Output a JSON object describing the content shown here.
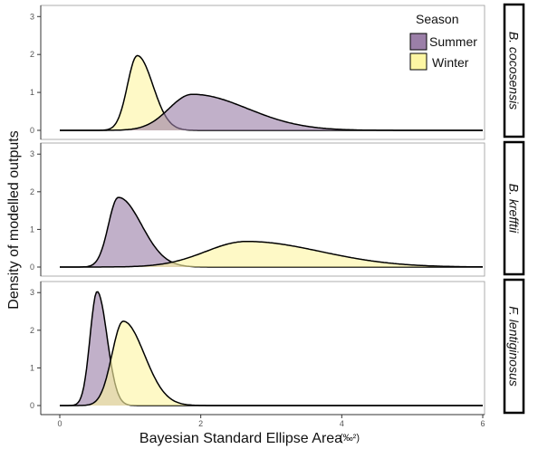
{
  "chart_data": {
    "type": "area",
    "xlabel": "Bayesian Standard Ellipse Area",
    "xlabel_unit": "(‰²)",
    "ylabel": "Density of modelled outputs",
    "xlim": [
      0,
      6
    ],
    "ylim": [
      0,
      3.2
    ],
    "x_ticks": [
      "0",
      "2",
      "4",
      "6"
    ],
    "y_ticks": [
      "0",
      "1",
      "2",
      "3"
    ],
    "legend": {
      "title": "Season",
      "placement": "top-right",
      "entries": [
        {
          "name": "Summer",
          "color": "#9b7fa8"
        },
        {
          "name": "Winter",
          "color": "#fdf6a3"
        }
      ]
    },
    "panels": [
      {
        "label": "B. cocosensis",
        "series": [
          {
            "name": "Winter",
            "peak_x": 1.1,
            "peak_y": 1.97,
            "sd_left": 0.14,
            "sd_right": 0.22
          },
          {
            "name": "Summer",
            "peak_x": 1.88,
            "peak_y": 0.95,
            "sd_left": 0.33,
            "sd_right": 0.78
          }
        ]
      },
      {
        "label": "B. krefftii",
        "series": [
          {
            "name": "Summer",
            "peak_x": 0.83,
            "peak_y": 1.85,
            "sd_left": 0.14,
            "sd_right": 0.33
          },
          {
            "name": "Winter",
            "peak_x": 2.65,
            "peak_y": 0.68,
            "sd_left": 0.58,
            "sd_right": 1.05
          }
        ]
      },
      {
        "label": "F. lentiginosus",
        "series": [
          {
            "name": "Summer",
            "peak_x": 0.53,
            "peak_y": 3.03,
            "sd_left": 0.1,
            "sd_right": 0.14
          },
          {
            "name": "Winter",
            "peak_x": 0.9,
            "peak_y": 2.24,
            "sd_left": 0.16,
            "sd_right": 0.3
          }
        ]
      }
    ]
  }
}
